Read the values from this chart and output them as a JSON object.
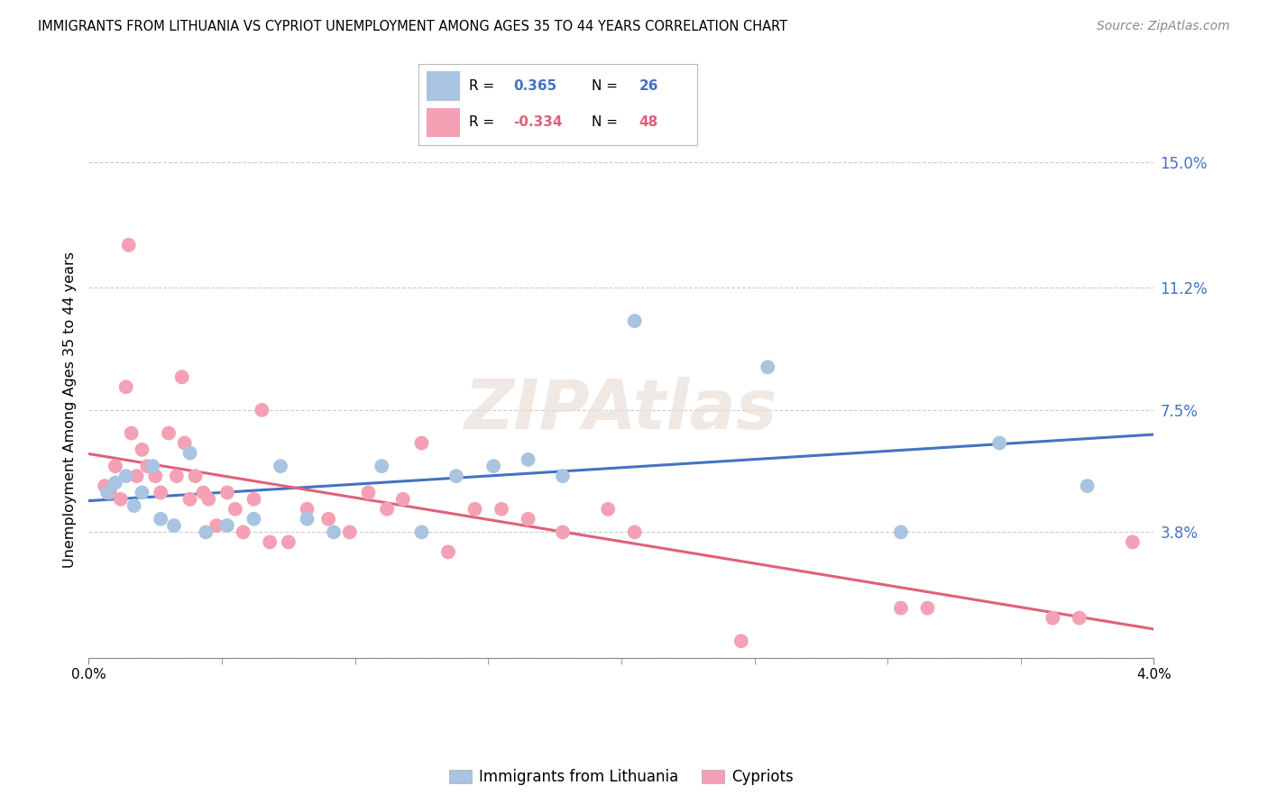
{
  "title": "IMMIGRANTS FROM LITHUANIA VS CYPRIOT UNEMPLOYMENT AMONG AGES 35 TO 44 YEARS CORRELATION CHART",
  "source": "Source: ZipAtlas.com",
  "ylabel": "Unemployment Among Ages 35 to 44 years",
  "watermark": "ZIPAtlas",
  "xlim": [
    0.0,
    4.0
  ],
  "ylim": [
    -2.0,
    17.0
  ],
  "ytick_vals": [
    0.0,
    3.8,
    7.5,
    11.2,
    15.0
  ],
  "ytick_labels": [
    "",
    "3.8%",
    "7.5%",
    "11.2%",
    "15.0%"
  ],
  "xtick_positions": [
    0.0,
    0.5,
    1.0,
    1.5,
    2.0,
    2.5,
    3.0,
    3.5,
    4.0
  ],
  "blue_color": "#a8c4e0",
  "pink_color": "#f4a0b5",
  "blue_line_color": "#4472c4",
  "pink_line_color": "#e0607a",
  "legend_blue_r": "0.365",
  "legend_blue_n": "26",
  "legend_pink_r": "-0.334",
  "legend_pink_n": "48",
  "legend_blue_label": "Immigrants from Lithuania",
  "legend_pink_label": "Cypriots",
  "blue_scatter_x": [
    0.07,
    0.1,
    0.14,
    0.17,
    0.2,
    0.24,
    0.27,
    0.32,
    0.38,
    0.44,
    0.52,
    0.62,
    0.72,
    0.82,
    0.92,
    1.1,
    1.25,
    1.38,
    1.52,
    1.65,
    1.78,
    2.05,
    2.55,
    3.05,
    3.42,
    3.75
  ],
  "blue_scatter_y": [
    5.0,
    5.3,
    5.5,
    4.6,
    5.0,
    5.8,
    4.2,
    4.0,
    6.2,
    3.8,
    4.0,
    4.2,
    5.8,
    4.2,
    3.8,
    5.8,
    3.8,
    5.5,
    5.8,
    6.0,
    5.5,
    10.2,
    8.8,
    3.8,
    6.5,
    5.2
  ],
  "pink_scatter_x": [
    0.06,
    0.08,
    0.1,
    0.12,
    0.14,
    0.16,
    0.18,
    0.2,
    0.22,
    0.25,
    0.27,
    0.3,
    0.33,
    0.36,
    0.38,
    0.4,
    0.43,
    0.45,
    0.48,
    0.52,
    0.55,
    0.58,
    0.62,
    0.68,
    0.75,
    0.82,
    0.9,
    0.98,
    1.05,
    1.12,
    1.18,
    1.25,
    1.35,
    1.45,
    1.55,
    1.65,
    1.78,
    1.95,
    2.05,
    2.45,
    3.05,
    3.15,
    3.62,
    3.72,
    3.92,
    0.15,
    0.35,
    0.65
  ],
  "pink_scatter_y": [
    5.2,
    5.0,
    5.8,
    4.8,
    8.2,
    6.8,
    5.5,
    6.3,
    5.8,
    5.5,
    5.0,
    6.8,
    5.5,
    6.5,
    4.8,
    5.5,
    5.0,
    4.8,
    4.0,
    5.0,
    4.5,
    3.8,
    4.8,
    3.5,
    3.5,
    4.5,
    4.2,
    3.8,
    5.0,
    4.5,
    4.8,
    6.5,
    3.2,
    4.5,
    4.5,
    4.2,
    3.8,
    4.5,
    3.8,
    0.5,
    1.5,
    1.5,
    1.2,
    1.2,
    3.5,
    12.5,
    8.5,
    7.5
  ]
}
